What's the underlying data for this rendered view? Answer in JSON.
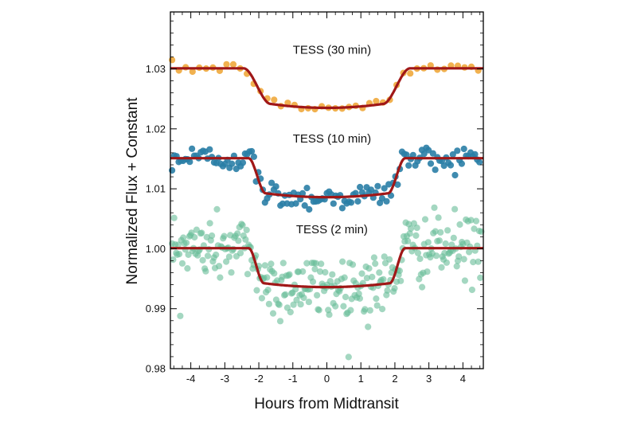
{
  "chart_data": {
    "type": "scatter",
    "xlabel": "Hours from Midtransit",
    "ylabel": "Normalized Flux + Constant",
    "xlim": [
      -4.6,
      4.6
    ],
    "ylim": [
      0.98,
      1.0395
    ],
    "x_ticks": [
      -4,
      -3,
      -2,
      -1,
      0,
      1,
      2,
      3,
      4
    ],
    "x_tick_labels": [
      "-4",
      "-3",
      "-2",
      "-1",
      "0",
      "1",
      "2",
      "3",
      "4"
    ],
    "y_ticks": [
      0.98,
      0.99,
      1.0,
      1.01,
      1.02,
      1.03
    ],
    "y_tick_labels": [
      "0.98",
      "0.99",
      "1.00",
      "1.01",
      "1.02",
      "1.03"
    ],
    "x_minor_step": 0.25,
    "y_minor_step": 0.002,
    "model_color": "#a01717",
    "series": [
      {
        "name": "TESS (30 min)",
        "color": "#f0a93c",
        "point_alpha": 0.9,
        "baseline": 1.0301,
        "depth": 0.0066,
        "ingress_start": 2.45,
        "ingress_end": 1.65,
        "scatter": 0.0005,
        "cadence_hours": 0.2,
        "label_at": [
          0.15,
          1.0325
        ]
      },
      {
        "name": "TESS (10 min)",
        "color": "#2a7ea6",
        "point_alpha": 0.9,
        "baseline": 1.0151,
        "depth": 0.0065,
        "ingress_start": 2.3,
        "ingress_end": 1.8,
        "scatter": 0.0011,
        "cadence_hours": 0.065,
        "label_at": [
          0.15,
          1.0177
        ]
      },
      {
        "name": "TESS (2 min)",
        "color": "#68bd98",
        "point_alpha": 0.6,
        "baseline": 1.0001,
        "depth": 0.0065,
        "ingress_start": 2.3,
        "ingress_end": 1.85,
        "scatter": 0.0028,
        "cadence_hours": 0.03,
        "label_at": [
          0.15,
          1.0026
        ]
      }
    ]
  }
}
